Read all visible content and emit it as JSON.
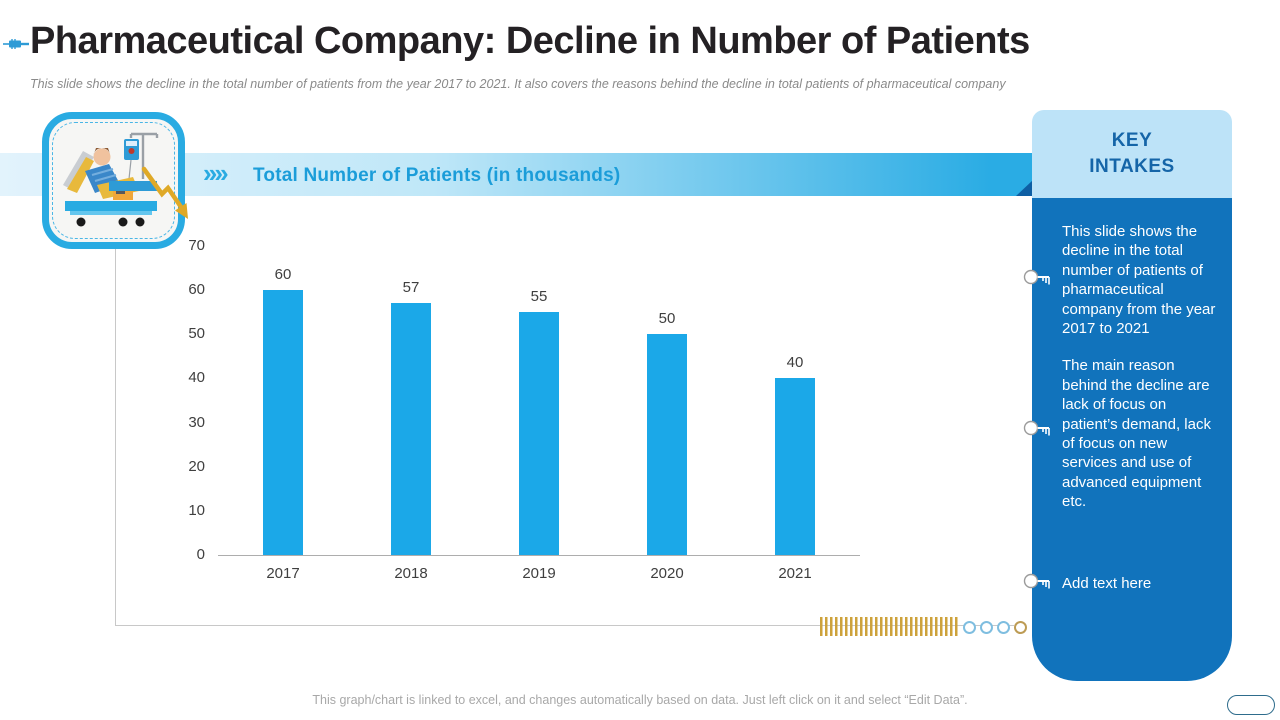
{
  "header": {
    "title": "Pharmaceutical Company: Decline in Number of Patients",
    "subtitle": "This slide shows the decline in the total number of patients from the year 2017 to 2021. It also covers the reasons behind the decline in total patients of pharmaceutical company"
  },
  "banner": {
    "chevrons": "››››",
    "title": "Total Number of Patients (in thousands)"
  },
  "chart_data": {
    "type": "bar",
    "title": "Total Number of Patients (in thousands)",
    "categories": [
      "2017",
      "2018",
      "2019",
      "2020",
      "2021"
    ],
    "values": [
      60,
      57,
      55,
      50,
      40
    ],
    "y_ticks": [
      0,
      10,
      20,
      30,
      40,
      50,
      60,
      70
    ],
    "ylim": [
      0,
      70
    ],
    "xlabel": "",
    "ylabel": "",
    "grid": false,
    "legend": false,
    "data_labels": true,
    "bar_color": "#1ba8e8"
  },
  "key_intakes": {
    "title": "KEY\nINTAKES",
    "items": [
      "This slide shows the decline in the total number of patients of pharmaceutical company from the year 2017 to 2021",
      "The main reason behind the decline are lack of focus on patient’s demand, lack of focus on new services and use of advanced equipment etc.",
      "Add text here"
    ]
  },
  "footer": {
    "note": "This graph/chart is linked to excel, and changes automatically based on data. Just left click on it and select “Edit Data”."
  },
  "colors": {
    "accent": "#29abe2",
    "banner_text": "#1b9dd9",
    "bar": "#1ba8e8",
    "panel_header_bg": "#bde3f8",
    "panel_body_bg": "#1173bc",
    "panel_title": "#1565a8",
    "gold": "#dfa927",
    "axis_text": "#3f3f3f",
    "title_text": "#242124"
  }
}
